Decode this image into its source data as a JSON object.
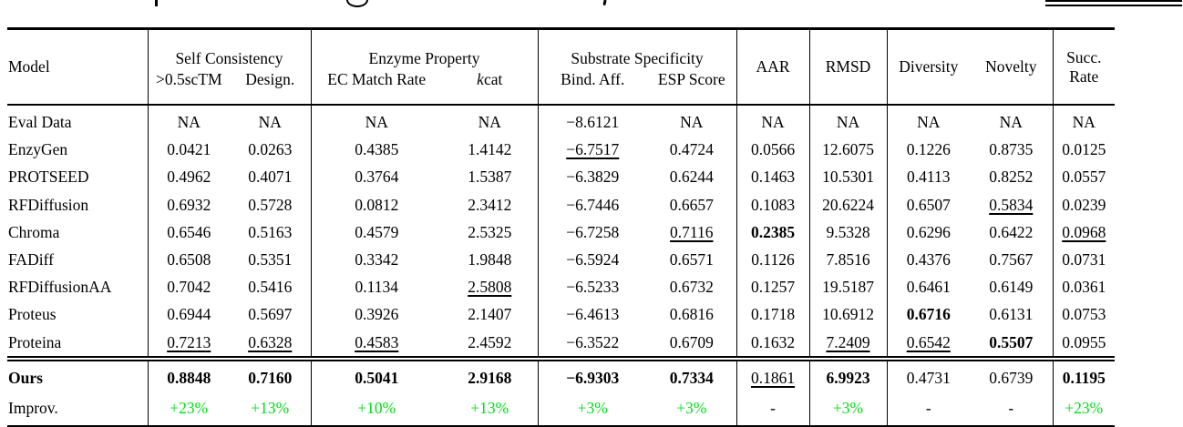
{
  "colors": {
    "improv_green": "#00e014",
    "text": "#000000",
    "background": "#ffffff"
  },
  "table": {
    "header": {
      "model_label": "Model",
      "groups": [
        {
          "label": "Self Consistency",
          "subs": [
            ">0.5scTM",
            "Design."
          ]
        },
        {
          "label": "Enzyme Property",
          "subs": [
            "EC Match Rate",
            "kcat"
          ]
        },
        {
          "label": "Substrate Specificity",
          "subs": [
            "Bind. Aff.",
            "ESP Score"
          ]
        }
      ],
      "aar_label": "AAR",
      "rmsd_label": "RMSD",
      "diversity_label": "Diversity",
      "novelty_label": "Novelty",
      "succ_line1": "Succ.",
      "succ_line2": "Rate"
    },
    "rows": [
      {
        "label": "Eval Data",
        "cells": [
          {
            "v": "NA"
          },
          {
            "v": "NA"
          },
          {
            "v": "NA"
          },
          {
            "v": "NA"
          },
          {
            "v": "−8.6121"
          },
          {
            "v": "NA"
          },
          {
            "v": "NA"
          },
          {
            "v": "NA"
          },
          {
            "v": "NA"
          },
          {
            "v": "NA"
          },
          {
            "v": "NA"
          }
        ]
      },
      {
        "label": "EnzyGen",
        "cells": [
          {
            "v": "0.0421"
          },
          {
            "v": "0.0263"
          },
          {
            "v": "0.4385"
          },
          {
            "v": "1.4142"
          },
          {
            "v": "−6.7517",
            "s": "u"
          },
          {
            "v": "0.4724"
          },
          {
            "v": "0.0566"
          },
          {
            "v": "12.6075"
          },
          {
            "v": "0.1226"
          },
          {
            "v": "0.8735"
          },
          {
            "v": "0.0125"
          }
        ]
      },
      {
        "label": "PROTSEED",
        "cells": [
          {
            "v": "0.4962"
          },
          {
            "v": "0.4071"
          },
          {
            "v": "0.3764"
          },
          {
            "v": "1.5387"
          },
          {
            "v": "−6.3829"
          },
          {
            "v": "0.6244"
          },
          {
            "v": "0.1463"
          },
          {
            "v": "10.5301"
          },
          {
            "v": "0.4113"
          },
          {
            "v": "0.8252"
          },
          {
            "v": "0.0557"
          }
        ]
      },
      {
        "label": "RFDiffusion",
        "cells": [
          {
            "v": "0.6932"
          },
          {
            "v": "0.5728"
          },
          {
            "v": "0.0812"
          },
          {
            "v": "2.3412"
          },
          {
            "v": "−6.7446"
          },
          {
            "v": "0.6657"
          },
          {
            "v": "0.1083"
          },
          {
            "v": "20.6224"
          },
          {
            "v": "0.6507"
          },
          {
            "v": "0.5834",
            "s": "u"
          },
          {
            "v": "0.0239"
          }
        ]
      },
      {
        "label": "Chroma",
        "cells": [
          {
            "v": "0.6546"
          },
          {
            "v": "0.5163"
          },
          {
            "v": "0.4579"
          },
          {
            "v": "2.5325"
          },
          {
            "v": "−6.7258"
          },
          {
            "v": "0.7116",
            "s": "u"
          },
          {
            "v": "0.2385",
            "s": "b"
          },
          {
            "v": "9.5328"
          },
          {
            "v": "0.6296"
          },
          {
            "v": "0.6422"
          },
          {
            "v": "0.0968",
            "s": "u"
          }
        ]
      },
      {
        "label": "FADiff",
        "cells": [
          {
            "v": "0.6508"
          },
          {
            "v": "0.5351"
          },
          {
            "v": "0.3342"
          },
          {
            "v": "1.9848"
          },
          {
            "v": "−6.5924"
          },
          {
            "v": "0.6571"
          },
          {
            "v": "0.1126"
          },
          {
            "v": "7.8516"
          },
          {
            "v": "0.4376"
          },
          {
            "v": "0.7567"
          },
          {
            "v": "0.0731"
          }
        ]
      },
      {
        "label": "RFDiffusionAA",
        "cells": [
          {
            "v": "0.7042"
          },
          {
            "v": "0.5416"
          },
          {
            "v": "0.1134"
          },
          {
            "v": "2.5808",
            "s": "u"
          },
          {
            "v": "−6.5233"
          },
          {
            "v": "0.6732"
          },
          {
            "v": "0.1257"
          },
          {
            "v": "19.5187"
          },
          {
            "v": "0.6461"
          },
          {
            "v": "0.6149"
          },
          {
            "v": "0.0361"
          }
        ]
      },
      {
        "label": "Proteus",
        "cells": [
          {
            "v": "0.6944"
          },
          {
            "v": "0.5697"
          },
          {
            "v": "0.3926"
          },
          {
            "v": "2.1407"
          },
          {
            "v": "−6.4613"
          },
          {
            "v": "0.6816"
          },
          {
            "v": "0.1718"
          },
          {
            "v": "10.6912"
          },
          {
            "v": "0.6716",
            "s": "b"
          },
          {
            "v": "0.6131"
          },
          {
            "v": "0.0753"
          }
        ]
      },
      {
        "label": "Proteina",
        "cells": [
          {
            "v": "0.7213",
            "s": "u"
          },
          {
            "v": "0.6328",
            "s": "u"
          },
          {
            "v": "0.4583",
            "s": "u"
          },
          {
            "v": "2.4592"
          },
          {
            "v": "−6.3522"
          },
          {
            "v": "0.6709"
          },
          {
            "v": "0.1632"
          },
          {
            "v": "7.2409",
            "s": "u"
          },
          {
            "v": "0.6542",
            "s": "u"
          },
          {
            "v": "0.5507",
            "s": "b"
          },
          {
            "v": "0.0955"
          }
        ]
      },
      {
        "label": "Ours",
        "bold": true,
        "sep": true,
        "cls": "ours",
        "cells": [
          {
            "v": "0.8848",
            "s": "b"
          },
          {
            "v": "0.7160",
            "s": "b"
          },
          {
            "v": "0.5041",
            "s": "b"
          },
          {
            "v": "2.9168",
            "s": "b"
          },
          {
            "v": "−6.9303",
            "s": "b"
          },
          {
            "v": "0.7334",
            "s": "b"
          },
          {
            "v": "0.1861",
            "s": "u"
          },
          {
            "v": "6.9923",
            "s": "b"
          },
          {
            "v": "0.4731"
          },
          {
            "v": "0.6739"
          },
          {
            "v": "0.1195",
            "s": "b"
          }
        ]
      },
      {
        "label": "Improv.",
        "cls": "improv",
        "cells": [
          {
            "v": "+23%",
            "s": "g"
          },
          {
            "v": "+13%",
            "s": "g"
          },
          {
            "v": "+10%",
            "s": "g"
          },
          {
            "v": "+13%",
            "s": "g"
          },
          {
            "v": "+3%",
            "s": "g"
          },
          {
            "v": "+3%",
            "s": "g"
          },
          {
            "v": "-"
          },
          {
            "v": "+3%",
            "s": "g"
          },
          {
            "v": "-"
          },
          {
            "v": "-"
          },
          {
            "v": "+23%",
            "s": "g"
          }
        ]
      }
    ]
  }
}
